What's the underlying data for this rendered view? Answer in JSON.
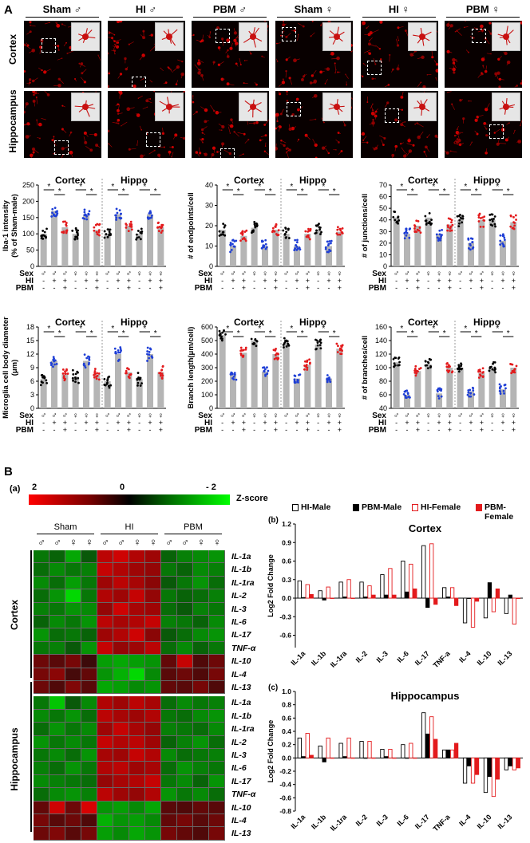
{
  "panelA": {
    "letter": "A",
    "groups": [
      {
        "label": "Sham",
        "sex": "♂"
      },
      {
        "label": "HI",
        "sex": "♂"
      },
      {
        "label": "PBM",
        "sex": "♂"
      },
      {
        "label": "Sham",
        "sex": "♀"
      },
      {
        "label": "HI",
        "sex": "♀"
      },
      {
        "label": "PBM",
        "sex": "♀"
      }
    ],
    "rows": [
      "Cortex",
      "Hippocampus"
    ],
    "charts": [
      {
        "ylabel": "Iba-1 intensity (% of Sham-male)",
        "ticks": [
          0,
          50,
          100,
          150,
          200,
          250
        ],
        "ymax": 250,
        "left_title": "Cortex",
        "right_title": "Hippo",
        "values": [
          100,
          170,
          120,
          100,
          160,
          112,
          100,
          160,
          125,
          100,
          160,
          120
        ],
        "dot_spread": 18
      },
      {
        "ylabel": "# of endpoints/cell",
        "ticks": [
          0,
          10,
          20,
          30,
          40
        ],
        "ymax": 40,
        "left_title": "Cortex",
        "right_title": "Hippo",
        "values": [
          18,
          10,
          15,
          19,
          10,
          18,
          16,
          10,
          16,
          18,
          10,
          17
        ],
        "dot_spread": 3
      },
      {
        "ylabel": "# of junctions/cell",
        "ticks": [
          0,
          10,
          20,
          30,
          40,
          50,
          60,
          70
        ],
        "ymax": 70,
        "left_title": "Cortex",
        "right_title": "Hippo",
        "values": [
          42,
          28,
          35,
          42,
          28,
          36,
          40,
          20,
          40,
          40,
          22,
          38
        ],
        "dot_spread": 6
      },
      {
        "ylabel": "Microglia cell body diameter (μm)",
        "ticks": [
          0,
          3,
          6,
          9,
          12,
          15,
          18
        ],
        "ymax": 18,
        "left_title": "Cortex",
        "right_title": "Hippo",
        "values": [
          6.5,
          10.5,
          7.5,
          7,
          10.5,
          7.5,
          6,
          12,
          8,
          6.5,
          12,
          8
        ],
        "dot_spread": 1.5
      },
      {
        "ylabel": "Branch length(μm/cell)",
        "ticks": [
          0,
          100,
          200,
          300,
          400,
          500,
          600
        ],
        "ymax": 600,
        "left_title": "Cortex",
        "right_title": "Hippo",
        "values": [
          540,
          245,
          410,
          500,
          270,
          400,
          480,
          220,
          320,
          470,
          220,
          440
        ],
        "dot_spread": 40
      },
      {
        "ylabel": "# of branches/cell",
        "ticks": [
          40,
          60,
          80,
          100,
          120,
          140,
          160
        ],
        "ymax": 160,
        "ymin": 40,
        "left_title": "Cortex",
        "right_title": "Hippo",
        "values": [
          108,
          60,
          95,
          105,
          62,
          100,
          100,
          65,
          92,
          100,
          68,
          100
        ],
        "dot_spread": 8
      }
    ],
    "xrows": {
      "labels": [
        "Sex",
        "HI",
        "PBM"
      ],
      "sex": [
        "♂",
        "♂",
        "♂",
        "♀",
        "♀",
        "♀",
        "♂",
        "♂",
        "♂",
        "♀",
        "♀",
        "♀"
      ],
      "hi": [
        "-",
        "+",
        "+",
        "-",
        "+",
        "+",
        "-",
        "+",
        "+",
        "-",
        "+",
        "+"
      ],
      "pbm": [
        "-",
        "-",
        "+",
        "-",
        "-",
        "+",
        "-",
        "-",
        "+",
        "-",
        "-",
        "+"
      ]
    },
    "sig_marker": "*"
  },
  "panelB": {
    "letter": "B",
    "sublabel_a": "(a)",
    "scale": {
      "left": "2",
      "mid": "0",
      "right": "- 2",
      "title": "Z-score"
    },
    "groups": [
      "Sham",
      "HI",
      "PBM"
    ],
    "sexes": [
      "♂",
      "♂",
      "♀",
      "♀",
      "♂",
      "♂",
      "♀",
      "♀",
      "♂",
      "♂",
      "♀",
      "♀"
    ],
    "regions": [
      "Cortex",
      "Hippocampus"
    ],
    "cytokines_cortex": [
      "IL-1a",
      "IL-1b",
      "IL-1ra",
      "IL-2",
      "IL-3",
      "IL-6",
      "IL-17",
      "TNF-α",
      "IL-10",
      "IL-4",
      "IL-13"
    ],
    "cytokines_hippo": [
      "IL-1a",
      "IL-1b",
      "IL-1ra",
      "IL-2",
      "IL-3",
      "IL-6",
      "IL-17",
      "TNF-α",
      "IL-10",
      "IL-4",
      "IL-13"
    ],
    "heatmap_cortex": [
      [
        -0.6,
        -0.4,
        -1.1,
        -0.3,
        1.3,
        1.5,
        1.2,
        1.0,
        -0.4,
        -0.7,
        -0.8,
        -0.9
      ],
      [
        -0.5,
        -0.8,
        -0.6,
        -0.7,
        1.4,
        1.2,
        1.0,
        0.9,
        -0.6,
        -0.4,
        -0.8,
        -0.7
      ],
      [
        -0.8,
        -0.5,
        -1.0,
        -0.6,
        1.0,
        1.3,
        1.1,
        0.8,
        -0.3,
        -0.6,
        -0.9,
        -0.5
      ],
      [
        -0.5,
        -0.9,
        -1.6,
        -0.6,
        1.2,
        1.0,
        1.4,
        0.9,
        -0.6,
        -0.4,
        -0.5,
        -0.7
      ],
      [
        -0.7,
        -0.6,
        -0.9,
        -0.8,
        0.9,
        1.5,
        1.1,
        1.0,
        -0.5,
        -0.3,
        -0.7,
        -0.6
      ],
      [
        -0.4,
        -0.8,
        -0.6,
        -0.9,
        1.3,
        1.1,
        1.2,
        1.4,
        -0.7,
        -0.6,
        -0.4,
        -0.8
      ],
      [
        -0.9,
        -0.5,
        -0.6,
        -0.4,
        1.0,
        1.2,
        1.5,
        0.8,
        -0.3,
        -0.5,
        -0.8,
        -0.9
      ],
      [
        -0.6,
        -0.7,
        -0.3,
        -0.9,
        1.4,
        0.9,
        1.0,
        1.3,
        -0.5,
        -0.8,
        -0.4,
        -0.6
      ],
      [
        0.5,
        0.3,
        0.6,
        0.0,
        -1.0,
        -1.1,
        -1.0,
        -0.9,
        0.4,
        1.4,
        0.2,
        0.5
      ],
      [
        0.6,
        0.8,
        0.1,
        0.4,
        -0.9,
        -1.2,
        -1.6,
        -0.8,
        0.3,
        0.5,
        0.2,
        0.6
      ],
      [
        0.5,
        0.2,
        0.7,
        0.3,
        -1.1,
        -1.0,
        -0.8,
        -0.9,
        0.4,
        0.3,
        0.6,
        0.2
      ]
    ],
    "heatmap_hippo": [
      [
        -0.6,
        -1.4,
        -0.3,
        -0.8,
        1.2,
        1.0,
        1.3,
        1.1,
        -0.5,
        -0.8,
        -0.6,
        -0.7
      ],
      [
        -0.8,
        -0.6,
        -0.9,
        -0.5,
        1.3,
        1.1,
        1.0,
        1.2,
        -0.6,
        -0.5,
        -0.8,
        -0.9
      ],
      [
        -0.5,
        -0.9,
        -0.6,
        -0.8,
        1.0,
        1.4,
        1.1,
        0.9,
        -0.7,
        -0.6,
        -0.5,
        -0.8
      ],
      [
        -0.9,
        -0.6,
        -0.8,
        -0.6,
        1.4,
        1.2,
        1.3,
        1.0,
        -0.4,
        -0.7,
        -0.9,
        -0.5
      ],
      [
        -0.6,
        -0.8,
        -0.5,
        -0.9,
        1.1,
        1.0,
        1.4,
        1.2,
        -0.8,
        -0.5,
        -0.6,
        -0.7
      ],
      [
        -0.7,
        -0.5,
        -0.9,
        -0.6,
        1.2,
        1.3,
        1.0,
        1.1,
        -0.5,
        -0.9,
        -0.7,
        -0.6
      ],
      [
        -0.8,
        -0.7,
        -0.6,
        -0.5,
        0.9,
        1.1,
        1.2,
        1.4,
        -0.6,
        -0.8,
        -0.4,
        -0.9
      ],
      [
        -0.5,
        -0.8,
        -0.9,
        -0.7,
        1.3,
        1.0,
        0.9,
        1.2,
        -0.9,
        -0.6,
        -0.8,
        -0.5
      ],
      [
        0.4,
        1.5,
        0.5,
        1.6,
        -0.9,
        -1.0,
        -0.8,
        -1.1,
        0.3,
        0.2,
        0.4,
        0.3
      ],
      [
        0.6,
        0.3,
        0.5,
        0.2,
        -1.2,
        -0.9,
        -1.0,
        -0.8,
        0.4,
        0.6,
        0.3,
        0.5
      ],
      [
        0.5,
        0.7,
        0.3,
        0.6,
        -1.0,
        -0.8,
        -1.1,
        -0.9,
        0.6,
        0.4,
        0.2,
        0.6
      ]
    ],
    "legend": [
      "HI-Male",
      "PBM-Male",
      "HI-Female",
      "PBM-Female"
    ],
    "series_colors": {
      "HI-Male": "#ffffff",
      "PBM-Male": "#000000",
      "HI-Female": "#ffffff",
      "PBM-Female": "#e31a1c"
    },
    "series_strokes": {
      "HI-Male": "#000000",
      "PBM-Male": "#000000",
      "HI-Female": "#e31a1c",
      "PBM-Female": "#e31a1c"
    }
  },
  "chart_data": [
    {
      "type": "bar",
      "sublabel": "(b)",
      "title": "Cortex",
      "ylabel": "Log2 Fold Change",
      "ylim": [
        -0.8,
        1.2
      ],
      "yticks": [
        -0.6,
        -0.3,
        0.0,
        0.3,
        0.6,
        0.9,
        1.2
      ],
      "ytick_labels": [
        "-0.6",
        "-0.3",
        "0.0",
        "0.3",
        "0.6",
        "0.9",
        "1.2"
      ],
      "categories": [
        "IL-1a",
        "IL-1b",
        "IL-1ra",
        "IL-2",
        "IL-3",
        "IL-6",
        "IL-17",
        "TNF-a",
        "IL-4",
        "IL-10",
        "IL-13"
      ],
      "series": [
        {
          "name": "HI-Male",
          "values": [
            0.28,
            0.12,
            0.26,
            0.26,
            0.38,
            0.6,
            0.85,
            0.17,
            -0.4,
            -0.32,
            -0.25
          ]
        },
        {
          "name": "PBM-Male",
          "values": [
            0.01,
            -0.03,
            0.02,
            0.02,
            0.05,
            0.1,
            -0.15,
            0.02,
            0.0,
            0.25,
            0.05
          ]
        },
        {
          "name": "HI-Female",
          "values": [
            0.22,
            0.18,
            0.3,
            0.2,
            0.48,
            0.55,
            0.88,
            0.17,
            -0.47,
            -0.22,
            -0.42
          ]
        },
        {
          "name": "PBM-Female",
          "values": [
            0.06,
            0.0,
            0.0,
            0.05,
            0.05,
            0.15,
            -0.1,
            -0.12,
            -0.05,
            0.15,
            0.0
          ]
        }
      ]
    },
    {
      "type": "bar",
      "sublabel": "(c)",
      "title": "Hippocampus",
      "ylabel": "Log2 Fold Change",
      "ylim": [
        -0.8,
        1.0
      ],
      "yticks": [
        -0.8,
        -0.6,
        -0.4,
        -0.2,
        0.0,
        0.2,
        0.4,
        0.6,
        0.8,
        1.0
      ],
      "ytick_labels": [
        "-0.8",
        "-0.6",
        "-0.4",
        "-0.2",
        "0.0",
        "0.2",
        "0.4",
        "0.6",
        "0.8",
        "1.0"
      ],
      "categories": [
        "IL-1a",
        "IL-1b",
        "IL-1ra",
        "IL-2",
        "IL-3",
        "IL-6",
        "IL-17",
        "TNF-a",
        "IL-4",
        "IL-10",
        "IL-13"
      ],
      "series": [
        {
          "name": "HI-Male",
          "values": [
            0.3,
            0.18,
            0.22,
            0.25,
            0.13,
            0.2,
            0.68,
            0.12,
            -0.38,
            -0.52,
            -0.18
          ]
        },
        {
          "name": "PBM-Male",
          "values": [
            0.02,
            -0.06,
            0.02,
            0.0,
            0.02,
            0.0,
            0.36,
            0.12,
            -0.12,
            -0.28,
            -0.12
          ]
        },
        {
          "name": "HI-Female",
          "values": [
            0.37,
            0.3,
            0.3,
            0.25,
            0.13,
            0.22,
            0.62,
            0.12,
            -0.38,
            -0.58,
            -0.18
          ]
        },
        {
          "name": "PBM-Female",
          "values": [
            0.04,
            0.0,
            0.0,
            0.0,
            0.0,
            0.0,
            0.28,
            0.22,
            -0.25,
            -0.32,
            -0.15
          ]
        }
      ]
    }
  ]
}
